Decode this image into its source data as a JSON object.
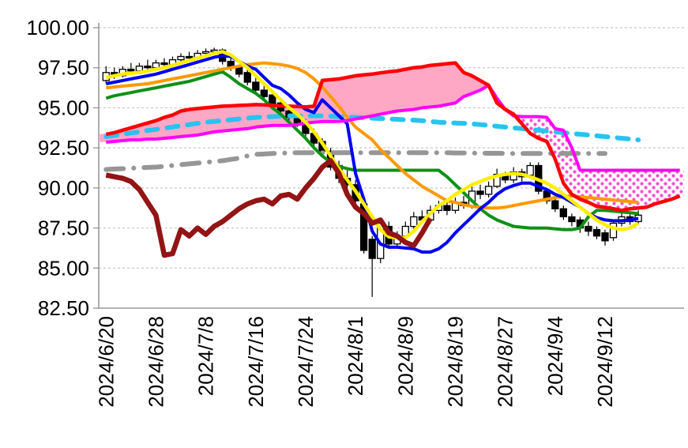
{
  "chart_data": {
    "type": "candlestick",
    "title": "",
    "xlabel": "",
    "ylabel": "",
    "grid": true,
    "legend": "none",
    "y_axis": {
      "min": 82.5,
      "max": 100.0,
      "step": 2.5,
      "tick_labels": [
        "100.00",
        "97.50",
        "95.00",
        "92.50",
        "90.00",
        "87.50",
        "85.00",
        "82.50"
      ]
    },
    "x_axis": {
      "tick_labels": [
        "2024/6/20",
        "2024/6/28",
        "2024/7/8",
        "2024/7/16",
        "2024/7/24",
        "2024/8/1",
        "2024/8/9",
        "2024/8/19",
        "2024/8/27",
        "2024/9/4",
        "2024/9/12"
      ],
      "label_slot_step": 6,
      "num_slots": 70
    },
    "colors": {
      "bull_candle": "#FFFFFF",
      "bear_candle": "#000000",
      "candle_border": "#000000",
      "cloud_bull_fill": "#FFA8C6",
      "cloud_bear_dot": "#FF4DD2",
      "gridline": "#C6C6C6",
      "axis": "#9A9A9A"
    },
    "candles_ohlc": [
      [
        96.7,
        97.6,
        96.5,
        97.2
      ],
      [
        97.2,
        97.5,
        96.8,
        97.0
      ],
      [
        97.0,
        97.6,
        96.9,
        97.4
      ],
      [
        97.4,
        97.8,
        97.1,
        97.3
      ],
      [
        97.3,
        97.8,
        97.2,
        97.6
      ],
      [
        97.6,
        98.0,
        97.3,
        97.5
      ],
      [
        97.5,
        98.0,
        97.4,
        97.8
      ],
      [
        97.8,
        98.1,
        97.5,
        97.7
      ],
      [
        97.7,
        98.2,
        97.6,
        98.0
      ],
      [
        98.0,
        98.4,
        97.9,
        98.2
      ],
      [
        98.2,
        98.5,
        97.9,
        98.1
      ],
      [
        98.1,
        98.6,
        98.0,
        98.4
      ],
      [
        98.4,
        98.7,
        98.2,
        98.5
      ],
      [
        98.5,
        98.75,
        98.3,
        98.6
      ],
      [
        98.6,
        98.7,
        97.7,
        97.9
      ],
      [
        97.9,
        98.1,
        97.3,
        97.5
      ],
      [
        97.5,
        97.7,
        96.9,
        97.1
      ],
      [
        97.2,
        97.4,
        96.4,
        96.6
      ],
      [
        96.6,
        96.9,
        95.9,
        96.1
      ],
      [
        96.1,
        96.4,
        95.5,
        95.7
      ],
      [
        95.8,
        96.0,
        95.0,
        95.2
      ],
      [
        95.3,
        95.6,
        94.6,
        94.8
      ],
      [
        94.8,
        95.1,
        94.2,
        94.4
      ],
      [
        94.5,
        94.7,
        93.8,
        94.0
      ],
      [
        94.0,
        94.3,
        93.2,
        93.4
      ],
      [
        93.4,
        93.7,
        92.6,
        92.8
      ],
      [
        92.9,
        93.1,
        92.0,
        92.3
      ],
      [
        92.3,
        92.5,
        91.1,
        91.3
      ],
      [
        91.4,
        91.7,
        90.3,
        90.6
      ],
      [
        90.6,
        91.1,
        89.9,
        90.2
      ],
      [
        90.2,
        90.5,
        88.9,
        89.2
      ],
      [
        89.0,
        89.2,
        85.9,
        86.1
      ],
      [
        86.8,
        87.0,
        83.2,
        85.6
      ],
      [
        85.6,
        88.0,
        85.3,
        87.8
      ],
      [
        87.6,
        87.9,
        86.2,
        86.5
      ],
      [
        86.5,
        87.3,
        86.3,
        87.0
      ],
      [
        87.0,
        87.9,
        86.8,
        87.6
      ],
      [
        87.6,
        88.5,
        87.4,
        88.2
      ],
      [
        88.2,
        88.6,
        87.8,
        88.0
      ],
      [
        88.0,
        88.9,
        87.8,
        88.6
      ],
      [
        88.6,
        89.2,
        88.4,
        88.9
      ],
      [
        88.9,
        89.1,
        88.3,
        88.6
      ],
      [
        88.6,
        89.4,
        88.4,
        89.1
      ],
      [
        89.1,
        89.5,
        88.7,
        88.9
      ],
      [
        88.9,
        90.1,
        88.7,
        89.8
      ],
      [
        89.8,
        90.2,
        89.3,
        89.6
      ],
      [
        89.6,
        90.4,
        89.4,
        90.1
      ],
      [
        90.1,
        91.2,
        90.0,
        90.85
      ],
      [
        90.85,
        91.0,
        90.3,
        90.5
      ],
      [
        90.5,
        91.3,
        90.3,
        91.0
      ],
      [
        91.0,
        91.2,
        90.4,
        90.7
      ],
      [
        90.8,
        91.6,
        90.6,
        91.4
      ],
      [
        91.4,
        91.6,
        89.6,
        89.8
      ],
      [
        89.8,
        90.0,
        89.0,
        89.2
      ],
      [
        89.2,
        89.4,
        88.5,
        88.7
      ],
      [
        88.7,
        88.9,
        88.0,
        88.2
      ],
      [
        88.2,
        88.4,
        87.6,
        87.9
      ],
      [
        88.0,
        88.2,
        87.2,
        87.5
      ],
      [
        87.6,
        87.9,
        87.0,
        87.3
      ],
      [
        87.4,
        87.6,
        86.8,
        87.0
      ],
      [
        87.2,
        87.4,
        86.4,
        86.7
      ],
      [
        86.9,
        88.0,
        86.7,
        87.8
      ],
      [
        87.8,
        88.5,
        87.6,
        88.2
      ],
      [
        88.2,
        88.4,
        87.7,
        87.9
      ],
      [
        87.9,
        88.6,
        87.7,
        88.3
      ]
    ],
    "series": [
      {
        "name": "dashdot-gray-line",
        "color": "#969696",
        "width": 6,
        "style": "dashdot",
        "values": [
          91.15,
          91.18,
          91.2,
          91.23,
          91.25,
          91.28,
          91.3,
          91.35,
          91.4,
          91.45,
          91.5,
          91.55,
          91.6,
          91.65,
          91.7,
          91.78,
          91.85,
          92.0,
          92.1,
          92.12,
          92.15,
          92.17,
          92.18,
          92.2,
          92.2,
          92.2,
          92.2,
          92.2,
          92.2,
          92.2,
          92.2,
          92.2,
          92.2,
          92.2,
          92.2,
          92.2,
          92.2,
          92.2,
          92.2,
          92.2,
          92.2,
          92.2,
          92.18,
          92.18,
          92.17,
          92.17,
          92.16,
          92.16,
          92.15,
          92.15,
          92.15,
          92.15,
          92.15,
          92.15,
          92.15,
          92.15,
          92.15,
          92.15,
          92.15,
          92.15,
          92.15
        ]
      },
      {
        "name": "dashed-cyan-line",
        "color": "#29C3F0",
        "width": 6,
        "style": "dashed",
        "values": [
          93.2,
          93.28,
          93.35,
          93.43,
          93.5,
          93.58,
          93.65,
          93.73,
          93.8,
          93.88,
          93.95,
          94.03,
          94.1,
          94.15,
          94.2,
          94.25,
          94.3,
          94.35,
          94.4,
          94.43,
          94.45,
          94.48,
          94.5,
          94.5,
          94.5,
          94.5,
          94.5,
          94.48,
          94.45,
          94.43,
          94.4,
          94.38,
          94.35,
          94.33,
          94.3,
          94.28,
          94.25,
          94.23,
          94.2,
          94.15,
          94.1,
          94.08,
          94.05,
          94.03,
          94.0,
          93.95,
          93.9,
          93.85,
          93.8,
          93.75,
          93.7,
          93.65,
          93.6,
          93.55,
          93.5,
          93.45,
          93.4,
          93.35,
          93.3,
          93.25,
          93.2,
          93.15,
          93.1,
          93.05,
          93.0
        ]
      },
      {
        "name": "green-ma-line",
        "color": "#0E9116",
        "width": 4,
        "style": "solid",
        "values": [
          95.6,
          95.75,
          95.85,
          95.95,
          96.05,
          96.15,
          96.25,
          96.35,
          96.45,
          96.55,
          96.65,
          96.8,
          96.95,
          97.1,
          97.25,
          96.9,
          96.5,
          96.2,
          95.9,
          95.5,
          95.0,
          94.6,
          94.1,
          93.6,
          93.1,
          92.5,
          92.0,
          91.6,
          91.35,
          91.2,
          91.1,
          91.1,
          91.1,
          91.1,
          91.1,
          91.1,
          91.1,
          91.1,
          91.1,
          91.1,
          91.1,
          90.7,
          90.2,
          89.7,
          89.2,
          88.7,
          88.3,
          88.0,
          87.8,
          87.6,
          87.55,
          87.5,
          87.5,
          87.5,
          87.45,
          87.4,
          87.4,
          87.5,
          88.2,
          88.6,
          88.6,
          88.55,
          88.5,
          88.45,
          88.4
        ]
      },
      {
        "name": "orange-ma-line",
        "color": "#FF9900",
        "width": 4,
        "style": "solid",
        "values": [
          96.25,
          96.3,
          96.35,
          96.4,
          96.45,
          96.5,
          96.6,
          96.7,
          96.8,
          96.9,
          97.0,
          97.1,
          97.2,
          97.3,
          97.4,
          97.5,
          97.6,
          97.7,
          97.75,
          97.8,
          97.75,
          97.7,
          97.6,
          97.45,
          97.2,
          96.8,
          96.3,
          95.7,
          95.1,
          94.4,
          93.8,
          93.4,
          93.0,
          92.4,
          91.9,
          91.4,
          90.9,
          90.5,
          90.1,
          89.8,
          89.5,
          89.2,
          89.1,
          88.95,
          88.85,
          88.8,
          88.75,
          88.75,
          88.8,
          88.9,
          89.0,
          89.1,
          89.2,
          89.3,
          89.4,
          89.45,
          89.5,
          89.45,
          89.4,
          89.35,
          89.3,
          89.25,
          89.2,
          89.15,
          89.1
        ]
      },
      {
        "name": "blue-ma-line",
        "color": "#0000F0",
        "width": 4,
        "style": "solid",
        "values": [
          96.5,
          96.6,
          96.7,
          96.8,
          96.9,
          97.0,
          97.1,
          97.25,
          97.4,
          97.55,
          97.7,
          97.85,
          98.0,
          98.15,
          98.25,
          98.2,
          97.9,
          97.6,
          97.4,
          96.9,
          96.4,
          96.2,
          95.8,
          95.3,
          94.9,
          94.7,
          95.5,
          95.0,
          94.5,
          94.0,
          90.9,
          89.3,
          87.3,
          86.5,
          86.3,
          86.3,
          86.25,
          86.2,
          86.0,
          86.0,
          86.2,
          86.6,
          87.2,
          87.7,
          88.2,
          88.7,
          89.1,
          89.6,
          89.95,
          90.15,
          90.3,
          90.3,
          90.1,
          89.9,
          89.6,
          89.4,
          89.1,
          88.8,
          88.4,
          88.15,
          88.0,
          87.95,
          87.95,
          88.0,
          88.1
        ]
      },
      {
        "name": "cloud-bottom-magenta-line",
        "color": "#FF00FF",
        "width": 4,
        "style": "solid",
        "is_cloud_b": true,
        "values": [
          92.85,
          92.9,
          92.95,
          93.0,
          93.0,
          93.05,
          93.05,
          93.1,
          93.15,
          93.2,
          93.25,
          93.3,
          93.4,
          93.5,
          93.55,
          93.6,
          93.65,
          93.7,
          93.8,
          93.85,
          93.9,
          93.9,
          93.9,
          93.95,
          94.05,
          94.1,
          94.15,
          94.15,
          94.15,
          94.2,
          94.3,
          94.4,
          94.5,
          94.6,
          94.7,
          94.8,
          94.85,
          94.9,
          95.0,
          95.05,
          95.1,
          95.2,
          95.3,
          95.7,
          95.9,
          96.1,
          96.4,
          95.6,
          94.9,
          94.5,
          94.45,
          94.45,
          94.45,
          94.4,
          93.7,
          93.6,
          92.5,
          91.1,
          91.1,
          91.1,
          91.1,
          91.1,
          91.1,
          91.1,
          91.1,
          91.1,
          91.1,
          91.1,
          91.1,
          91.1
        ]
      },
      {
        "name": "cloud-top-red-line",
        "color": "#FF0000",
        "width": 4.5,
        "style": "solid",
        "is_cloud_a": true,
        "values": [
          93.35,
          93.45,
          93.6,
          93.75,
          93.9,
          94.05,
          94.2,
          94.4,
          94.55,
          94.8,
          94.9,
          94.95,
          95.0,
          95.05,
          95.1,
          95.12,
          95.15,
          95.17,
          95.2,
          95.18,
          95.15,
          95.12,
          95.1,
          95.08,
          95.05,
          95.1,
          96.7,
          96.75,
          96.8,
          96.9,
          97.0,
          97.05,
          97.1,
          97.18,
          97.25,
          97.3,
          97.4,
          97.5,
          97.55,
          97.65,
          97.7,
          97.75,
          97.8,
          97.2,
          97.0,
          96.7,
          96.4,
          95.3,
          94.9,
          94.6,
          94.0,
          93.4,
          93.1,
          92.9,
          91.8,
          90.3,
          89.6,
          89.3,
          89.1,
          88.85,
          88.8,
          88.7,
          88.6,
          88.7,
          88.75,
          88.8,
          89.0,
          89.15,
          89.3,
          89.5
        ]
      },
      {
        "name": "yellow-ma-line",
        "color": "#FFEE00",
        "width": 4.5,
        "style": "solid",
        "values": [
          96.9,
          97.0,
          97.1,
          97.15,
          97.2,
          97.3,
          97.4,
          97.5,
          97.65,
          97.8,
          97.95,
          98.1,
          98.25,
          98.4,
          98.5,
          98.3,
          97.9,
          97.5,
          97.0,
          96.5,
          96.0,
          95.5,
          95.0,
          94.6,
          94.1,
          93.5,
          92.8,
          92.0,
          91.2,
          90.5,
          89.8,
          89.0,
          88.2,
          87.4,
          86.95,
          86.9,
          86.9,
          87.3,
          87.9,
          88.4,
          88.9,
          89.2,
          89.6,
          89.9,
          90.2,
          90.4,
          90.6,
          90.75,
          90.85,
          90.9,
          90.85,
          90.7,
          90.5,
          90.3,
          90.0,
          89.6,
          89.2,
          88.8,
          88.4,
          88.0,
          87.7,
          87.5,
          87.4,
          87.5,
          87.8
        ]
      },
      {
        "name": "darkred-lagging-line",
        "color": "#921414",
        "width": 6.5,
        "style": "solid",
        "values": [
          90.8,
          90.7,
          90.6,
          90.4,
          89.9,
          89.1,
          88.3,
          85.8,
          85.9,
          87.4,
          87.0,
          87.5,
          87.1,
          87.6,
          87.9,
          88.3,
          88.7,
          89.0,
          89.2,
          89.3,
          89.0,
          89.5,
          89.6,
          89.3,
          90.0,
          90.6,
          91.3,
          91.7,
          90.9,
          89.6,
          88.8,
          88.4,
          87.8,
          88.0,
          87.2,
          87.0,
          86.6,
          86.4,
          87.2,
          88.1
        ]
      }
    ]
  }
}
